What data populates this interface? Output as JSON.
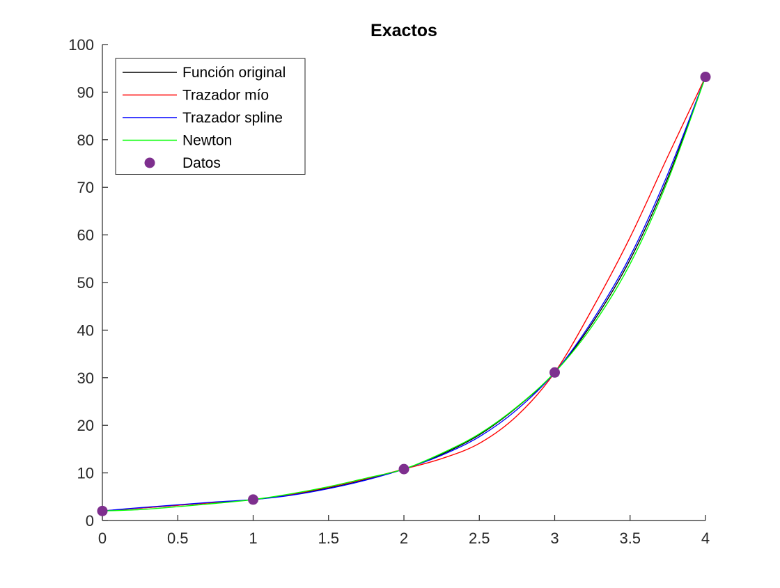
{
  "chart_data": {
    "type": "line",
    "title": "Exactos",
    "xlabel": "",
    "ylabel": "",
    "xlim": [
      0,
      4
    ],
    "ylim": [
      0,
      100
    ],
    "grid": false,
    "legend_position": "top-left",
    "xticks": [
      0,
      0.5,
      1,
      1.5,
      2,
      2.5,
      3,
      3.5,
      4
    ],
    "xtick_labels": [
      "0",
      "0.5",
      "1",
      "1.5",
      "2",
      "2.5",
      "3",
      "3.5",
      "4"
    ],
    "yticks": [
      0,
      10,
      20,
      30,
      40,
      50,
      60,
      70,
      80,
      90,
      100
    ],
    "ytick_labels": [
      "0",
      "10",
      "20",
      "30",
      "40",
      "50",
      "60",
      "70",
      "80",
      "90",
      "100"
    ],
    "series": [
      {
        "name": "Función original",
        "color": "#000000",
        "kind": "line",
        "x": [
          0,
          0.25,
          0.5,
          0.75,
          1,
          1.25,
          1.5,
          1.75,
          2,
          2.25,
          2.5,
          2.75,
          3,
          3.25,
          3.5,
          3.75,
          4
        ],
        "y": [
          2.0,
          2.6,
          3.2,
          3.8,
          4.4,
          5.4,
          6.8,
          8.6,
          10.8,
          13.9,
          18.0,
          23.8,
          31.1,
          41.5,
          54.8,
          72.0,
          93.2
        ]
      },
      {
        "name": "Trazador mío",
        "color": "#ff0000",
        "kind": "line",
        "x": [
          0,
          0.25,
          0.5,
          0.75,
          1,
          1.25,
          1.5,
          1.75,
          2,
          2.25,
          2.5,
          2.75,
          3,
          3.25,
          3.5,
          3.75,
          4
        ],
        "y": [
          2.0,
          2.6,
          3.2,
          3.8,
          4.4,
          5.5,
          7.0,
          8.8,
          10.8,
          13.0,
          16.2,
          22.0,
          31.1,
          44.5,
          59.5,
          76.5,
          93.2
        ]
      },
      {
        "name": "Trazador spline",
        "color": "#0000ff",
        "kind": "line",
        "x": [
          0,
          0.25,
          0.5,
          0.75,
          1,
          1.25,
          1.5,
          1.75,
          2,
          2.25,
          2.5,
          2.75,
          3,
          3.25,
          3.5,
          3.75,
          4
        ],
        "y": [
          2.0,
          2.7,
          3.3,
          3.9,
          4.4,
          5.3,
          6.7,
          8.5,
          10.8,
          13.7,
          17.6,
          23.3,
          31.1,
          42.0,
          55.5,
          72.8,
          93.2
        ]
      },
      {
        "name": "Newton",
        "color": "#00ff00",
        "kind": "line",
        "x": [
          0,
          0.25,
          0.5,
          0.75,
          1,
          1.25,
          1.5,
          1.75,
          2,
          2.25,
          2.5,
          2.75,
          3,
          3.25,
          3.5,
          3.75,
          4
        ],
        "y": [
          2.0,
          2.3,
          2.9,
          3.6,
          4.4,
          5.6,
          7.1,
          8.9,
          10.8,
          14.1,
          18.2,
          23.9,
          31.1,
          40.9,
          53.9,
          71.4,
          93.2
        ]
      },
      {
        "name": "Datos",
        "color": "#7e2f8e",
        "kind": "points",
        "x": [
          0,
          1,
          2,
          3,
          4
        ],
        "y": [
          2.0,
          4.4,
          10.8,
          31.1,
          93.2
        ]
      }
    ]
  }
}
